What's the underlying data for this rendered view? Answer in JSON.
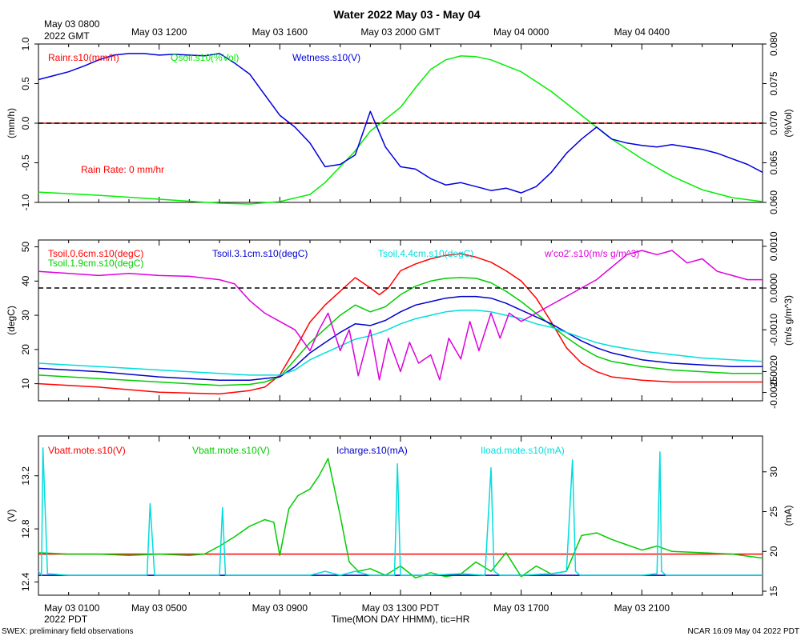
{
  "title": "Water 2022 May 03 - May 04",
  "top_axis": {
    "corner_label": [
      "May 03 0800",
      "2022 GMT"
    ],
    "ticks": [
      {
        "t": 4,
        "label": "May 03 1200"
      },
      {
        "t": 8,
        "label": "May 03 1600"
      },
      {
        "t": 12,
        "label": "May 03 2000 GMT"
      },
      {
        "t": 16,
        "label": "May 04 0000"
      },
      {
        "t": 20,
        "label": "May 04 0400"
      }
    ]
  },
  "bottom_axis": {
    "corner_label": [
      "May 03 0100",
      "2022 PDT"
    ],
    "xlabel": "Time(MON DAY HHMM), tic=HR",
    "ticks": [
      {
        "t": 0,
        "label": "May 03 0100"
      },
      {
        "t": 4,
        "label": "May 03 0500"
      },
      {
        "t": 8,
        "label": "May 03 0900"
      },
      {
        "t": 12,
        "label": "May 03 1300 PDT"
      },
      {
        "t": 16,
        "label": "May 03 1700"
      },
      {
        "t": 20,
        "label": "May 03 2100"
      }
    ]
  },
  "footer": {
    "left": "SWEX: preliminary field observations",
    "right": "NCAR 16:09 May 04 2022 PDT"
  },
  "chart_data": [
    {
      "type": "line",
      "panel": "water",
      "x_unit": "hours since May 03 0800 GMT",
      "xlim": [
        0,
        24
      ],
      "left_axis": {
        "label": "(mm/h)",
        "ylim": [
          -1.0,
          1.0
        ],
        "ticks": [
          1.0,
          0.5,
          0.0,
          -0.5,
          -1.0
        ],
        "tick_labels": [
          "1.0",
          "0.5",
          "0.0",
          "-0.5",
          "-1.0"
        ]
      },
      "right_axis": {
        "label": "(%Vol)",
        "ylim": [
          0.06,
          0.08
        ],
        "ticks": [
          0.08,
          0.075,
          0.07,
          0.065,
          0.06
        ],
        "tick_labels": [
          "0.080",
          "0.075",
          "0.070",
          "0.065",
          "0.060"
        ]
      },
      "reference_line": {
        "axis": "left",
        "value": 0.0,
        "style": "dashed"
      },
      "annotation": "Rain Rate: 0 mm/hr",
      "series": [
        {
          "name": "Rainr.s10(mm/h)",
          "color": "#ff0000",
          "axis": "left",
          "x": [
            0,
            24
          ],
          "y": [
            0,
            0
          ]
        },
        {
          "name": "Qsoil.s10(%Vol)",
          "color": "#00ee00",
          "axis": "right",
          "x": [
            0,
            2,
            4,
            6,
            7,
            8,
            9,
            9.5,
            10,
            10.5,
            11,
            11.5,
            12,
            12.5,
            13,
            13.5,
            14,
            14.5,
            15,
            16,
            17,
            18,
            19,
            20,
            21,
            22,
            23,
            24
          ],
          "y": [
            0.0613,
            0.0609,
            0.0604,
            0.0599,
            0.0598,
            0.0601,
            0.061,
            0.0625,
            0.0645,
            0.0665,
            0.069,
            0.0705,
            0.072,
            0.0745,
            0.0768,
            0.078,
            0.0785,
            0.0784,
            0.078,
            0.0765,
            0.074,
            0.071,
            0.068,
            0.0655,
            0.0633,
            0.0616,
            0.0606,
            0.0601
          ]
        },
        {
          "name": "Wetness.s10(V)",
          "color": "#0000dd",
          "axis": "left",
          "x": [
            0,
            0.5,
            1,
            1.5,
            2,
            2.5,
            3,
            3.5,
            4,
            4.5,
            5,
            5.5,
            6,
            6.5,
            7,
            7.5,
            8,
            8.5,
            9,
            9.5,
            10,
            10.5,
            11,
            11.5,
            12,
            12.5,
            13,
            13.5,
            14,
            14.5,
            15,
            15.5,
            16,
            16.5,
            17,
            17.5,
            18,
            18.5,
            19,
            19.5,
            20,
            20.5,
            21,
            21.5,
            22,
            22.5,
            23,
            23.5,
            24
          ],
          "y": [
            0.55,
            0.6,
            0.65,
            0.72,
            0.8,
            0.86,
            0.88,
            0.88,
            0.86,
            0.87,
            0.86,
            0.85,
            0.88,
            0.76,
            0.62,
            0.36,
            0.1,
            -0.05,
            -0.25,
            -0.55,
            -0.52,
            -0.4,
            0.15,
            -0.3,
            -0.55,
            -0.58,
            -0.7,
            -0.78,
            -0.75,
            -0.8,
            -0.85,
            -0.82,
            -0.88,
            -0.8,
            -0.62,
            -0.38,
            -0.2,
            -0.05,
            -0.2,
            -0.25,
            -0.28,
            -0.3,
            -0.27,
            -0.3,
            -0.33,
            -0.38,
            -0.45,
            -0.52,
            -0.62
          ]
        }
      ]
    },
    {
      "type": "line",
      "panel": "soil-temperature",
      "x_unit": "hours since May 03 0800 GMT",
      "xlim": [
        0,
        24
      ],
      "left_axis": {
        "label": "(degC)",
        "ylim": [
          5,
          52
        ],
        "ticks": [
          50,
          40,
          30,
          20,
          10
        ],
        "tick_labels": [
          "50",
          "40",
          "30",
          "20",
          "10"
        ]
      },
      "right_axis": {
        "label": "(m/s g/m^3)",
        "ylim": [
          -0.0027,
          0.00115
        ],
        "ticks": [
          0.001,
          0.0,
          -0.001,
          -0.002,
          -0.0025
        ],
        "tick_labels": [
          "0.0010",
          "0.0000",
          "-0.0010",
          "-0.0020",
          "-0.0025"
        ]
      },
      "reference_line": {
        "axis": "right",
        "value": 0.0,
        "style": "dashed"
      },
      "series": [
        {
          "name": "Tsoil.0.6cm.s10(degC)",
          "color": "#ff0000",
          "axis": "left",
          "x": [
            0,
            2,
            4,
            6,
            7,
            7.5,
            8,
            8.5,
            9,
            9.5,
            10,
            10.5,
            11,
            11.3,
            11.6,
            12,
            12.5,
            13,
            13.5,
            14,
            14.5,
            15,
            15.5,
            16,
            16.5,
            17,
            17.5,
            18,
            18.5,
            19,
            20,
            21,
            22,
            23,
            24
          ],
          "y": [
            10.0,
            9.0,
            7.5,
            7.0,
            8.0,
            9.0,
            12.5,
            20.0,
            28.0,
            33.0,
            37.0,
            41.0,
            38.0,
            36.0,
            38.0,
            43.0,
            45.0,
            46.5,
            47.5,
            48.0,
            47.0,
            45.5,
            43.0,
            40.0,
            35.0,
            28.0,
            20.5,
            16.0,
            13.5,
            12.0,
            11.0,
            10.5,
            10.5,
            10.5,
            10.5
          ]
        },
        {
          "name": "Tsoil.1.9cm.s10(degC)",
          "color": "#00cc00",
          "axis": "left",
          "x": [
            0,
            2,
            4,
            6,
            7,
            7.5,
            8,
            8.5,
            9,
            9.5,
            10,
            10.5,
            11,
            11.5,
            12,
            12.5,
            13,
            13.5,
            14,
            14.5,
            15,
            15.5,
            16,
            16.5,
            17,
            17.5,
            18,
            18.5,
            19,
            20,
            21,
            22,
            23,
            24
          ],
          "y": [
            12.5,
            11.5,
            10.5,
            9.5,
            9.8,
            10.5,
            12.0,
            17.0,
            22.0,
            26.0,
            30.0,
            33.0,
            31.0,
            32.5,
            36.0,
            38.5,
            40.0,
            40.8,
            41.0,
            40.8,
            39.5,
            37.0,
            34.0,
            30.5,
            27.0,
            23.5,
            20.5,
            18.0,
            16.5,
            15.0,
            14.0,
            13.5,
            13.0,
            13.0
          ]
        },
        {
          "name": "Tsoil.3.1cm.s10(degC)",
          "color": "#0000cc",
          "axis": "left",
          "x": [
            0,
            2,
            4,
            6,
            7,
            8,
            8.5,
            9,
            9.5,
            10,
            10.5,
            11,
            11.5,
            12,
            12.5,
            13,
            13.5,
            14,
            14.5,
            15,
            15.5,
            16,
            16.5,
            17,
            17.5,
            18,
            18.5,
            19,
            20,
            21,
            22,
            23,
            24
          ],
          "y": [
            14.5,
            13.5,
            12.0,
            11.0,
            11.0,
            12.0,
            15.0,
            19.0,
            22.0,
            25.0,
            27.5,
            27.0,
            28.5,
            31.0,
            33.0,
            34.0,
            35.0,
            35.5,
            35.5,
            35.0,
            33.5,
            31.5,
            29.5,
            27.5,
            25.0,
            22.5,
            20.5,
            19.0,
            17.0,
            16.0,
            15.5,
            15.0,
            15.0
          ]
        },
        {
          "name": "Tsoil.4.4cm.s10(degC)",
          "color": "#00dddd",
          "axis": "left",
          "x": [
            0,
            2,
            4,
            6,
            7,
            8,
            8.5,
            9,
            9.5,
            10,
            10.5,
            11,
            11.5,
            12,
            12.5,
            13,
            13.5,
            14,
            14.5,
            15,
            15.5,
            16,
            16.5,
            17,
            17.5,
            18,
            18.5,
            19,
            20,
            21,
            22,
            23,
            24
          ],
          "y": [
            16.0,
            15.0,
            14.0,
            13.0,
            12.5,
            12.5,
            14.0,
            17.0,
            19.0,
            21.0,
            23.0,
            24.0,
            25.5,
            27.5,
            29.0,
            30.0,
            31.0,
            31.5,
            31.5,
            31.0,
            30.0,
            29.0,
            27.5,
            26.5,
            25.0,
            23.5,
            22.0,
            21.0,
            19.5,
            18.5,
            17.5,
            17.0,
            16.5
          ]
        },
        {
          "name": "w'co2'.s10(m/s g/m^3)",
          "color": "#dd00dd",
          "axis": "right",
          "x": [
            0,
            1,
            2,
            3,
            4,
            5,
            6,
            6.5,
            7,
            7.5,
            8,
            8.5,
            9,
            9.3,
            9.6,
            10,
            10.3,
            10.6,
            11,
            11.3,
            11.6,
            12,
            12.3,
            12.6,
            13,
            13.3,
            13.6,
            14,
            14.3,
            14.6,
            15,
            15.3,
            15.6,
            16,
            16.5,
            17,
            17.5,
            18,
            18.5,
            19,
            19.5,
            20,
            20.5,
            21,
            21.5,
            22,
            22.5,
            23,
            23.5,
            24
          ],
          "y": [
            0.0004,
            0.00035,
            0.0003,
            0.00035,
            0.0003,
            0.00028,
            0.0002,
            0.0001,
            -0.0003,
            -0.0006,
            -0.0008,
            -0.001,
            -0.0015,
            -0.001,
            -0.0006,
            -0.0015,
            -0.001,
            -0.0021,
            -0.001,
            -0.0022,
            -0.0012,
            -0.002,
            -0.0013,
            -0.0018,
            -0.0016,
            -0.0022,
            -0.0012,
            -0.0017,
            -0.0008,
            -0.0015,
            -0.0006,
            -0.0012,
            -0.0006,
            -0.0008,
            -0.0006,
            -0.0004,
            -0.0002,
            0.0,
            0.0002,
            0.0005,
            0.0008,
            0.0009,
            0.0008,
            0.0009,
            0.0006,
            0.0007,
            0.0004,
            0.0003,
            0.0002,
            0.0002
          ]
        }
      ]
    },
    {
      "type": "line",
      "panel": "power",
      "x_unit": "hours since May 03 0800 GMT",
      "xlim": [
        0,
        24
      ],
      "left_axis": {
        "label": "(V)",
        "ylim": [
          12.3,
          13.5
        ],
        "ticks": [
          13.2,
          12.8,
          12.4
        ],
        "tick_labels": [
          "13.2",
          "12.8",
          "12.4"
        ]
      },
      "right_axis": {
        "label": "(mA)",
        "ylim": [
          14.5,
          34.5
        ],
        "ticks": [
          30,
          25,
          20,
          15
        ],
        "tick_labels": [
          "30",
          "25",
          "20",
          "15"
        ]
      },
      "series": [
        {
          "name": "Vbatt.mote.s10(V)",
          "color": "#ff0000",
          "axis": "left",
          "x": [
            0,
            24
          ],
          "y": [
            12.61,
            12.61
          ]
        },
        {
          "name": "Vbatt.mote.s10(V)",
          "color": "#00cc00",
          "axis": "left",
          "x": [
            0,
            1,
            2,
            3,
            4,
            5,
            5.5,
            6,
            6.5,
            7,
            7.5,
            7.8,
            8,
            8.3,
            8.6,
            9,
            9.3,
            9.6,
            10,
            10.3,
            10.6,
            11,
            11.5,
            12,
            12.5,
            13,
            13.5,
            14,
            14.5,
            15,
            15.5,
            16,
            16.5,
            17,
            17.5,
            18,
            18.5,
            19,
            19.5,
            20,
            20.5,
            21,
            22,
            23,
            24
          ],
          "y": [
            12.62,
            12.61,
            12.61,
            12.6,
            12.61,
            12.6,
            12.61,
            12.67,
            12.74,
            12.82,
            12.87,
            12.85,
            12.6,
            12.95,
            13.05,
            13.1,
            13.2,
            13.33,
            12.9,
            12.55,
            12.48,
            12.5,
            12.45,
            12.52,
            12.43,
            12.47,
            12.44,
            12.46,
            12.55,
            12.48,
            12.62,
            12.44,
            12.52,
            12.46,
            12.48,
            12.75,
            12.77,
            12.72,
            12.68,
            12.64,
            12.67,
            12.63,
            12.62,
            12.61,
            12.58
          ]
        },
        {
          "name": "Icharge.s10(mA)",
          "color": "#0000cc",
          "axis": "right",
          "x": [
            0,
            24
          ],
          "y": [
            17.0,
            17.0
          ]
        },
        {
          "name": "Iload.mote.s10(mA)",
          "color": "#00dddd",
          "axis": "right",
          "x": [
            0,
            0.1,
            0.15,
            0.3,
            1,
            2,
            3,
            3.6,
            3.7,
            3.85,
            5,
            6,
            6.1,
            6.2,
            6.35,
            7,
            8,
            9,
            9.5,
            10,
            10.5,
            11,
            11.5,
            11.8,
            11.9,
            12.0,
            12.2,
            13,
            14,
            14.8,
            15.0,
            15.1,
            15.3,
            16,
            17,
            17.5,
            17.7,
            17.8,
            17.95,
            19,
            20,
            20.5,
            20.6,
            20.65,
            20.8,
            21.5,
            22,
            23,
            24
          ],
          "y": [
            17.5,
            17.0,
            33.0,
            17.2,
            17.0,
            17.0,
            17.0,
            17.0,
            26.0,
            17.0,
            17.0,
            17.0,
            25.5,
            17.0,
            17.0,
            17.0,
            17.0,
            17.0,
            17.5,
            17.0,
            17.5,
            17.0,
            17.0,
            17.0,
            31.0,
            17.0,
            17.0,
            17.0,
            17.2,
            17.0,
            30.5,
            17.5,
            17.0,
            17.0,
            17.2,
            17.5,
            31.5,
            17.5,
            17.0,
            17.0,
            17.0,
            17.2,
            32.5,
            17.5,
            17.0,
            17.0,
            17.0,
            17.0,
            17.0
          ]
        }
      ]
    }
  ]
}
